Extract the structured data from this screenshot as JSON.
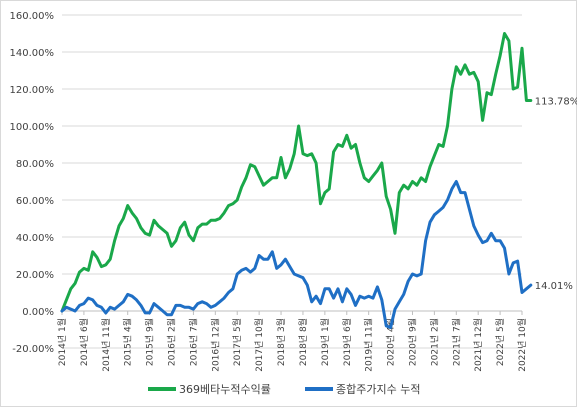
{
  "chart_data": {
    "type": "line",
    "ylim": [
      -20,
      160
    ],
    "y_ticks": [
      "-20.00%",
      "0.00%",
      "20.00%",
      "40.00%",
      "60.00%",
      "80.00%",
      "100.00%",
      "120.00%",
      "140.00%",
      "160.00%"
    ],
    "y_tick_values": [
      -20,
      0,
      20,
      40,
      60,
      80,
      100,
      120,
      140,
      160
    ],
    "x_start": "2014-01",
    "x_end": "2022-10",
    "x_ticks": [
      {
        "date": "2014-01",
        "label": "2014년 1월"
      },
      {
        "date": "2014-06",
        "label": "2014년 6월"
      },
      {
        "date": "2014-11",
        "label": "2014년 11월"
      },
      {
        "date": "2015-04",
        "label": "2015년 4월"
      },
      {
        "date": "2015-09",
        "label": "2015년 9월"
      },
      {
        "date": "2016-02",
        "label": "2016년 2월"
      },
      {
        "date": "2016-07",
        "label": "2016년 7월"
      },
      {
        "date": "2016-12",
        "label": "2016년 12월"
      },
      {
        "date": "2017-05",
        "label": "2017년 5월"
      },
      {
        "date": "2017-10",
        "label": "2017년 10월"
      },
      {
        "date": "2018-03",
        "label": "2018년 3월"
      },
      {
        "date": "2018-08",
        "label": "2018년 8월"
      },
      {
        "date": "2019-01",
        "label": "2019년 1월"
      },
      {
        "date": "2019-06",
        "label": "2019년 6월"
      },
      {
        "date": "2019-11",
        "label": "2019년 11월"
      },
      {
        "date": "2020-04",
        "label": "2020년 4월"
      },
      {
        "date": "2020-09",
        "label": "2020년 9월"
      },
      {
        "date": "2021-02",
        "label": "2021년 2월"
      },
      {
        "date": "2021-07",
        "label": "2021년 7월"
      },
      {
        "date": "2021-12",
        "label": "2021년 12월"
      },
      {
        "date": "2022-05",
        "label": "2022년 5월"
      },
      {
        "date": "2022-10",
        "label": "2022년 10월"
      }
    ],
    "grid": true,
    "legend_position": "bottom",
    "series": [
      {
        "name": "369베타누적수익률",
        "color": "#1aa84a",
        "end_label": "113.78%",
        "points": [
          [
            "2014-01",
            0
          ],
          [
            "2014-02",
            6
          ],
          [
            "2014-03",
            12
          ],
          [
            "2014-04",
            15
          ],
          [
            "2014-05",
            21
          ],
          [
            "2014-06",
            23
          ],
          [
            "2014-07",
            22
          ],
          [
            "2014-08",
            32
          ],
          [
            "2014-09",
            29
          ],
          [
            "2014-10",
            24
          ],
          [
            "2014-11",
            25
          ],
          [
            "2014-12",
            28
          ],
          [
            "2015-01",
            38
          ],
          [
            "2015-02",
            46
          ],
          [
            "2015-03",
            50
          ],
          [
            "2015-04",
            57
          ],
          [
            "2015-05",
            53
          ],
          [
            "2015-06",
            50
          ],
          [
            "2015-07",
            45
          ],
          [
            "2015-08",
            42
          ],
          [
            "2015-09",
            41
          ],
          [
            "2015-10",
            49
          ],
          [
            "2015-11",
            46
          ],
          [
            "2015-12",
            44
          ],
          [
            "2016-01",
            42
          ],
          [
            "2016-02",
            35
          ],
          [
            "2016-03",
            38
          ],
          [
            "2016-04",
            45
          ],
          [
            "2016-05",
            48
          ],
          [
            "2016-06",
            41
          ],
          [
            "2016-07",
            38
          ],
          [
            "2016-08",
            45
          ],
          [
            "2016-09",
            47
          ],
          [
            "2016-10",
            47
          ],
          [
            "2016-11",
            49
          ],
          [
            "2016-12",
            49
          ],
          [
            "2017-01",
            50
          ],
          [
            "2017-02",
            53
          ],
          [
            "2017-03",
            57
          ],
          [
            "2017-04",
            58
          ],
          [
            "2017-05",
            60
          ],
          [
            "2017-06",
            67
          ],
          [
            "2017-07",
            72
          ],
          [
            "2017-08",
            79
          ],
          [
            "2017-09",
            78
          ],
          [
            "2017-10",
            73
          ],
          [
            "2017-11",
            68
          ],
          [
            "2017-12",
            70
          ],
          [
            "2018-01",
            72
          ],
          [
            "2018-02",
            72
          ],
          [
            "2018-03",
            83
          ],
          [
            "2018-04",
            72
          ],
          [
            "2018-05",
            77
          ],
          [
            "2018-06",
            85
          ],
          [
            "2018-07",
            100
          ],
          [
            "2018-08",
            85
          ],
          [
            "2018-09",
            84
          ],
          [
            "2018-10",
            85
          ],
          [
            "2018-11",
            80
          ],
          [
            "2018-12",
            58
          ],
          [
            "2019-01",
            64
          ],
          [
            "2019-02",
            66
          ],
          [
            "2019-03",
            86
          ],
          [
            "2019-04",
            90
          ],
          [
            "2019-05",
            89
          ],
          [
            "2019-06",
            95
          ],
          [
            "2019-07",
            88
          ],
          [
            "2019-08",
            90
          ],
          [
            "2019-09",
            80
          ],
          [
            "2019-10",
            72
          ],
          [
            "2019-11",
            70
          ],
          [
            "2019-12",
            73
          ],
          [
            "2020-01",
            76
          ],
          [
            "2020-02",
            80
          ],
          [
            "2020-03",
            62
          ],
          [
            "2020-04",
            55
          ],
          [
            "2020-05",
            42
          ],
          [
            "2020-06",
            64
          ],
          [
            "2020-07",
            68
          ],
          [
            "2020-08",
            66
          ],
          [
            "2020-09",
            70
          ],
          [
            "2020-10",
            68
          ],
          [
            "2020-11",
            72
          ],
          [
            "2020-12",
            70
          ],
          [
            "2021-01",
            78
          ],
          [
            "2021-02",
            84
          ],
          [
            "2021-03",
            90
          ],
          [
            "2021-04",
            89
          ],
          [
            "2021-05",
            100
          ],
          [
            "2021-06",
            120
          ],
          [
            "2021-07",
            132
          ],
          [
            "2021-08",
            128
          ],
          [
            "2021-09",
            133
          ],
          [
            "2021-10",
            128
          ],
          [
            "2021-11",
            129
          ],
          [
            "2021-12",
            124
          ],
          [
            "2022-01",
            103
          ],
          [
            "2022-02",
            118
          ],
          [
            "2022-03",
            117
          ],
          [
            "2022-04",
            128
          ],
          [
            "2022-05",
            138
          ],
          [
            "2022-06",
            150
          ],
          [
            "2022-07",
            146
          ],
          [
            "2022-08",
            120
          ],
          [
            "2022-09",
            121
          ],
          [
            "2022-10",
            142
          ],
          [
            "2022-11",
            113.8
          ],
          [
            "2022-12",
            113.78
          ]
        ]
      },
      {
        "name": "종합주가지수 누적",
        "color": "#1f6fc5",
        "end_label": "14.01%",
        "points": [
          [
            "2014-01",
            0
          ],
          [
            "2014-02",
            2
          ],
          [
            "2014-03",
            1
          ],
          [
            "2014-04",
            0
          ],
          [
            "2014-05",
            3
          ],
          [
            "2014-06",
            4
          ],
          [
            "2014-07",
            7
          ],
          [
            "2014-08",
            6
          ],
          [
            "2014-09",
            3
          ],
          [
            "2014-10",
            2
          ],
          [
            "2014-11",
            -1
          ],
          [
            "2014-12",
            2
          ],
          [
            "2015-01",
            1
          ],
          [
            "2015-02",
            3
          ],
          [
            "2015-03",
            5
          ],
          [
            "2015-04",
            9
          ],
          [
            "2015-05",
            8
          ],
          [
            "2015-06",
            6
          ],
          [
            "2015-07",
            3
          ],
          [
            "2015-08",
            -1
          ],
          [
            "2015-09",
            -1
          ],
          [
            "2015-10",
            4
          ],
          [
            "2015-11",
            2
          ],
          [
            "2015-12",
            0
          ],
          [
            "2016-01",
            -2
          ],
          [
            "2016-02",
            -2
          ],
          [
            "2016-03",
            3
          ],
          [
            "2016-04",
            3
          ],
          [
            "2016-05",
            2
          ],
          [
            "2016-06",
            2
          ],
          [
            "2016-07",
            1
          ],
          [
            "2016-08",
            4
          ],
          [
            "2016-09",
            5
          ],
          [
            "2016-10",
            4
          ],
          [
            "2016-11",
            2
          ],
          [
            "2016-12",
            3
          ],
          [
            "2017-01",
            5
          ],
          [
            "2017-02",
            7
          ],
          [
            "2017-03",
            10
          ],
          [
            "2017-04",
            12
          ],
          [
            "2017-05",
            20
          ],
          [
            "2017-06",
            22
          ],
          [
            "2017-07",
            23
          ],
          [
            "2017-08",
            21
          ],
          [
            "2017-09",
            23
          ],
          [
            "2017-10",
            30
          ],
          [
            "2017-11",
            28
          ],
          [
            "2017-12",
            28
          ],
          [
            "2018-01",
            32
          ],
          [
            "2018-02",
            23
          ],
          [
            "2018-03",
            25
          ],
          [
            "2018-04",
            28
          ],
          [
            "2018-05",
            24
          ],
          [
            "2018-06",
            20
          ],
          [
            "2018-07",
            19
          ],
          [
            "2018-08",
            18
          ],
          [
            "2018-09",
            14
          ],
          [
            "2018-10",
            5
          ],
          [
            "2018-11",
            8
          ],
          [
            "2018-12",
            4
          ],
          [
            "2019-01",
            12
          ],
          [
            "2019-02",
            12
          ],
          [
            "2019-03",
            7
          ],
          [
            "2019-04",
            12
          ],
          [
            "2019-05",
            5
          ],
          [
            "2019-06",
            12
          ],
          [
            "2019-07",
            9
          ],
          [
            "2019-08",
            3
          ],
          [
            "2019-09",
            8
          ],
          [
            "2019-10",
            7
          ],
          [
            "2019-11",
            8
          ],
          [
            "2019-12",
            7
          ],
          [
            "2020-01",
            13
          ],
          [
            "2020-02",
            6
          ],
          [
            "2020-03",
            -8
          ],
          [
            "2020-04",
            -9
          ],
          [
            "2020-05",
            1
          ],
          [
            "2020-06",
            5
          ],
          [
            "2020-07",
            9
          ],
          [
            "2020-08",
            16
          ],
          [
            "2020-09",
            20
          ],
          [
            "2020-10",
            19
          ],
          [
            "2020-11",
            20
          ],
          [
            "2020-12",
            38
          ],
          [
            "2021-01",
            48
          ],
          [
            "2021-02",
            52
          ],
          [
            "2021-03",
            54
          ],
          [
            "2021-04",
            56
          ],
          [
            "2021-05",
            60
          ],
          [
            "2021-06",
            66
          ],
          [
            "2021-07",
            70
          ],
          [
            "2021-08",
            64
          ],
          [
            "2021-09",
            64
          ],
          [
            "2021-10",
            55
          ],
          [
            "2021-11",
            46
          ],
          [
            "2021-12",
            41
          ],
          [
            "2022-01",
            37
          ],
          [
            "2022-02",
            38
          ],
          [
            "2022-03",
            42
          ],
          [
            "2022-04",
            38
          ],
          [
            "2022-05",
            38
          ],
          [
            "2022-06",
            34
          ],
          [
            "2022-07",
            20
          ],
          [
            "2022-08",
            26
          ],
          [
            "2022-09",
            27
          ],
          [
            "2022-10",
            10
          ],
          [
            "2022-11",
            12
          ],
          [
            "2022-12",
            14.01
          ]
        ]
      }
    ]
  }
}
